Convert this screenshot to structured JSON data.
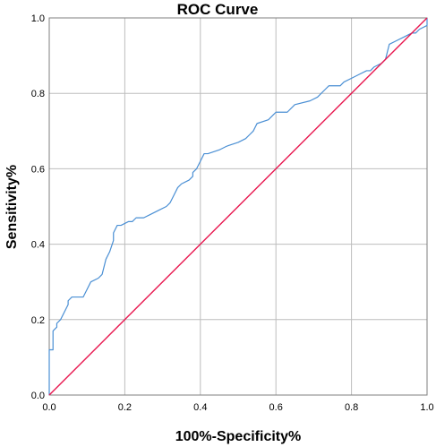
{
  "chart_data": {
    "type": "line",
    "title": "ROC Curve",
    "xlabel": "100%-Specificity%",
    "ylabel": "Sensitivity%",
    "xlim": [
      0.0,
      1.0
    ],
    "ylim": [
      0.0,
      1.0
    ],
    "x_ticks": [
      "0.0",
      "0.2",
      "0.4",
      "0.6",
      "0.8",
      "1.0"
    ],
    "y_ticks": [
      "0.0",
      "0.2",
      "0.4",
      "0.6",
      "0.8",
      "1.0"
    ],
    "grid": true,
    "legend": "none",
    "series": [
      {
        "color": "#4a8fd4",
        "x": [
          0.0,
          0.0,
          0.01,
          0.01,
          0.02,
          0.02,
          0.03,
          0.04,
          0.05,
          0.05,
          0.06,
          0.09,
          0.1,
          0.11,
          0.13,
          0.14,
          0.15,
          0.16,
          0.17,
          0.17,
          0.18,
          0.19,
          0.21,
          0.22,
          0.23,
          0.25,
          0.27,
          0.29,
          0.31,
          0.32,
          0.33,
          0.34,
          0.35,
          0.37,
          0.38,
          0.38,
          0.39,
          0.4,
          0.41,
          0.42,
          0.45,
          0.47,
          0.5,
          0.52,
          0.53,
          0.54,
          0.55,
          0.58,
          0.6,
          0.62,
          0.63,
          0.65,
          0.69,
          0.71,
          0.72,
          0.73,
          0.74,
          0.77,
          0.78,
          0.8,
          0.82,
          0.84,
          0.85,
          0.86,
          0.88,
          0.89,
          0.9,
          0.92,
          0.94,
          0.96,
          0.97,
          0.98,
          1.0,
          1.0
        ],
        "y": [
          0.0,
          0.12,
          0.12,
          0.17,
          0.18,
          0.19,
          0.2,
          0.22,
          0.24,
          0.25,
          0.26,
          0.26,
          0.28,
          0.3,
          0.31,
          0.32,
          0.36,
          0.38,
          0.41,
          0.43,
          0.45,
          0.45,
          0.46,
          0.46,
          0.47,
          0.47,
          0.48,
          0.49,
          0.5,
          0.51,
          0.53,
          0.55,
          0.56,
          0.57,
          0.58,
          0.59,
          0.6,
          0.62,
          0.64,
          0.64,
          0.65,
          0.66,
          0.67,
          0.68,
          0.69,
          0.7,
          0.72,
          0.73,
          0.75,
          0.75,
          0.75,
          0.77,
          0.78,
          0.79,
          0.8,
          0.81,
          0.82,
          0.82,
          0.83,
          0.84,
          0.85,
          0.86,
          0.86,
          0.87,
          0.88,
          0.89,
          0.93,
          0.94,
          0.95,
          0.96,
          0.96,
          0.97,
          0.98,
          1.0
        ]
      },
      {
        "color": "#e8174f",
        "x": [
          0.0,
          1.0
        ],
        "y": [
          0.0,
          1.0
        ]
      }
    ]
  }
}
